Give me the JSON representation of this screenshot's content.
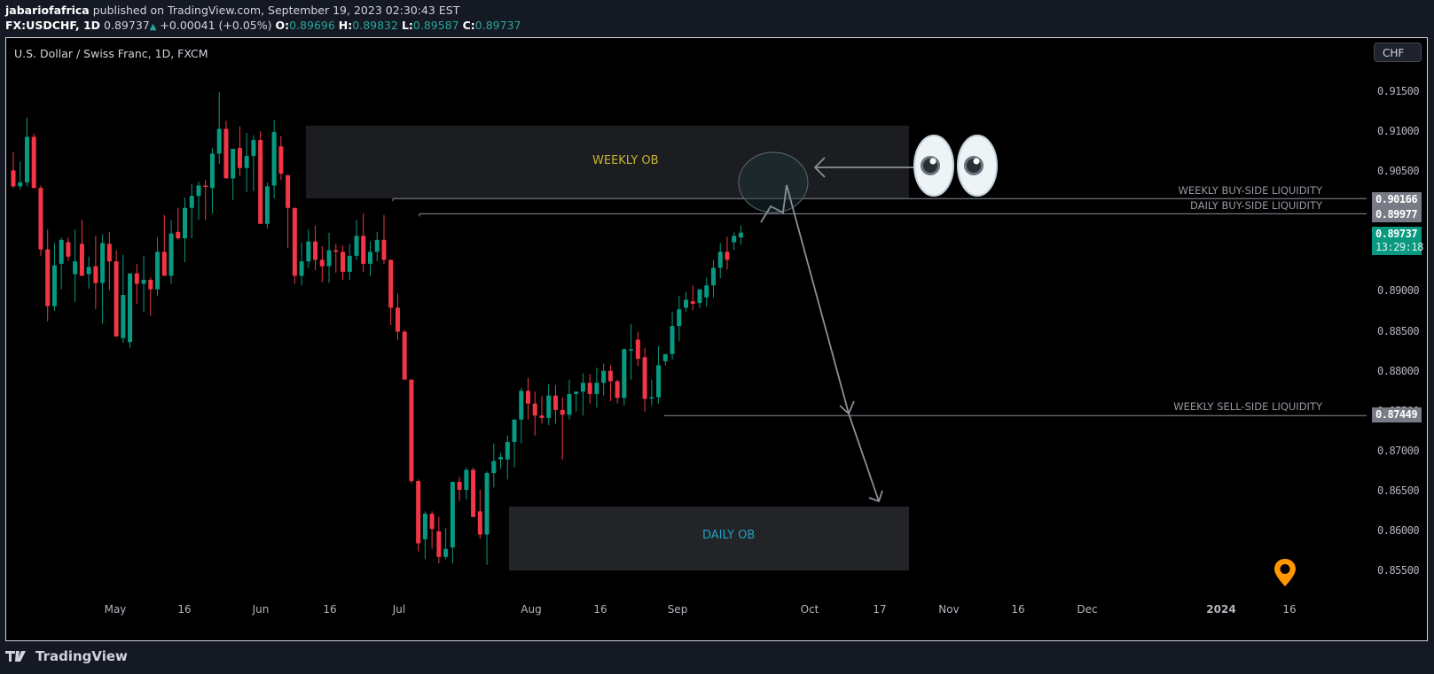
{
  "header": {
    "author": "jabariofafrica",
    "published": "published on TradingView.com, September 19, 2023 02:30:43 EST",
    "symbol": "FX:USDCHF, 1D",
    "last": "0.89737",
    "change": "+0.00041 (+0.05%)",
    "o_label": "O:",
    "o": "0.89696",
    "h_label": "H:",
    "h": "0.89832",
    "l_label": "L:",
    "l": "0.89587",
    "c_label": "C:",
    "c": "0.89737"
  },
  "chart": {
    "title": "U.S. Dollar / Swiss Franc, 1D, FXCM",
    "currency": "CHF",
    "price_labels": {
      "weekly_bsl": "0.90166",
      "daily_bsl": "0.89977",
      "last": "0.89737",
      "countdown": "13:29:18",
      "weekly_ssl": "0.87449"
    },
    "annotations": {
      "weekly_ob": "WEEKLY OB",
      "daily_ob": "DAILY OB",
      "weekly_bsl": "WEEKLY BUY-SIDE LIQUIDITY",
      "daily_bsl": "DAILY BUY-SIDE LIQUIDITY",
      "weekly_ssl": "WEEKLY SELL-SIDE LIQUIDITY"
    },
    "eyes_icon": "eyes-emoji",
    "marker_icon": "location-pin-icon"
  },
  "footer": {
    "brand": "TradingView"
  },
  "colors": {
    "up": "#089981",
    "down": "#f23645",
    "weekly_ob_text": "#c9b432",
    "daily_ob_text": "#1fa2c0",
    "line": "#8c8f99",
    "last_bg": "#089981",
    "label_bg": "#787b86",
    "pin": "#ff9800"
  },
  "chart_data": {
    "type": "candlestick",
    "title": "U.S. Dollar / Swiss Franc, 1D, FXCM",
    "symbol": "FX:USDCHF",
    "interval": "1D",
    "y_ticks": [
      "0.91500",
      "0.91000",
      "0.90500",
      "0.90000",
      "0.89500",
      "0.89000",
      "0.88500",
      "0.88000",
      "0.87500",
      "0.87000",
      "0.86500",
      "0.86000",
      "0.85500"
    ],
    "ylim": [
      0.8525,
      0.9175
    ],
    "x_ticks": [
      "May",
      "16",
      "Jun",
      "16",
      "Jul",
      "Aug",
      "16",
      "Sep",
      "Oct",
      "17",
      "Nov",
      "16",
      "Dec",
      "2024",
      "16"
    ],
    "levels": [
      {
        "name": "WEEKLY BUY-SIDE LIQUIDITY",
        "price": 0.90166
      },
      {
        "name": "DAILY BUY-SIDE LIQUIDITY",
        "price": 0.89977
      },
      {
        "name": "WEEKLY SELL-SIDE LIQUIDITY",
        "price": 0.87449
      }
    ],
    "zones": [
      {
        "name": "WEEKLY OB",
        "top": 0.9108,
        "bottom": 0.9017
      },
      {
        "name": "DAILY OB",
        "top": 0.8631,
        "bottom": 0.8551
      }
    ],
    "last_close": 0.89737,
    "candles": [
      {
        "o": 0.9052,
        "h": 0.9075,
        "l": 0.903,
        "c": 0.9032
      },
      {
        "o": 0.9032,
        "h": 0.9063,
        "l": 0.9028,
        "c": 0.9037
      },
      {
        "o": 0.9037,
        "h": 0.9118,
        "l": 0.9032,
        "c": 0.9094
      },
      {
        "o": 0.9094,
        "h": 0.9098,
        "l": 0.9029,
        "c": 0.903
      },
      {
        "o": 0.903,
        "h": 0.9033,
        "l": 0.8945,
        "c": 0.8953
      },
      {
        "o": 0.8953,
        "h": 0.8978,
        "l": 0.8863,
        "c": 0.8882
      },
      {
        "o": 0.8882,
        "h": 0.8961,
        "l": 0.8876,
        "c": 0.8933
      },
      {
        "o": 0.8935,
        "h": 0.8968,
        "l": 0.8903,
        "c": 0.8965
      },
      {
        "o": 0.8962,
        "h": 0.8968,
        "l": 0.8939,
        "c": 0.8944
      },
      {
        "o": 0.8922,
        "h": 0.8978,
        "l": 0.8887,
        "c": 0.8938
      },
      {
        "o": 0.896,
        "h": 0.899,
        "l": 0.8933,
        "c": 0.892
      },
      {
        "o": 0.8922,
        "h": 0.8944,
        "l": 0.8904,
        "c": 0.8931
      },
      {
        "o": 0.8932,
        "h": 0.897,
        "l": 0.8878,
        "c": 0.8911
      },
      {
        "o": 0.8911,
        "h": 0.8972,
        "l": 0.886,
        "c": 0.8961
      },
      {
        "o": 0.896,
        "h": 0.8975,
        "l": 0.8902,
        "c": 0.8938
      },
      {
        "o": 0.8938,
        "h": 0.8952,
        "l": 0.887,
        "c": 0.8844
      },
      {
        "o": 0.8842,
        "h": 0.8946,
        "l": 0.8836,
        "c": 0.8896
      },
      {
        "o": 0.8837,
        "h": 0.8903,
        "l": 0.883,
        "c": 0.8923
      },
      {
        "o": 0.8923,
        "h": 0.8935,
        "l": 0.8885,
        "c": 0.891
      },
      {
        "o": 0.891,
        "h": 0.8945,
        "l": 0.8875,
        "c": 0.8915
      },
      {
        "o": 0.8915,
        "h": 0.8918,
        "l": 0.887,
        "c": 0.8903
      },
      {
        "o": 0.8903,
        "h": 0.8968,
        "l": 0.8895,
        "c": 0.895
      },
      {
        "o": 0.895,
        "h": 0.8996,
        "l": 0.892,
        "c": 0.892
      },
      {
        "o": 0.892,
        "h": 0.899,
        "l": 0.891,
        "c": 0.8973
      },
      {
        "o": 0.8975,
        "h": 0.9005,
        "l": 0.8965,
        "c": 0.8967
      },
      {
        "o": 0.8967,
        "h": 0.9018,
        "l": 0.8937,
        "c": 0.9005
      },
      {
        "o": 0.9005,
        "h": 0.9035,
        "l": 0.8967,
        "c": 0.902
      },
      {
        "o": 0.902,
        "h": 0.9038,
        "l": 0.899,
        "c": 0.9033
      },
      {
        "o": 0.9033,
        "h": 0.904,
        "l": 0.899,
        "c": 0.9032
      },
      {
        "o": 0.903,
        "h": 0.908,
        "l": 0.8998,
        "c": 0.9073
      },
      {
        "o": 0.9073,
        "h": 0.915,
        "l": 0.906,
        "c": 0.9104
      },
      {
        "o": 0.9104,
        "h": 0.9114,
        "l": 0.9042,
        "c": 0.9042
      },
      {
        "o": 0.9042,
        "h": 0.9077,
        "l": 0.9015,
        "c": 0.9079
      },
      {
        "o": 0.908,
        "h": 0.9107,
        "l": 0.9045,
        "c": 0.9055
      },
      {
        "o": 0.9055,
        "h": 0.9099,
        "l": 0.9025,
        "c": 0.907
      },
      {
        "o": 0.907,
        "h": 0.9096,
        "l": 0.9026,
        "c": 0.909
      },
      {
        "o": 0.909,
        "h": 0.9101,
        "l": 0.8985,
        "c": 0.8985
      },
      {
        "o": 0.8985,
        "h": 0.9037,
        "l": 0.8979,
        "c": 0.9032
      },
      {
        "o": 0.9033,
        "h": 0.9115,
        "l": 0.9017,
        "c": 0.91
      },
      {
        "o": 0.9082,
        "h": 0.9095,
        "l": 0.904,
        "c": 0.9048
      },
      {
        "o": 0.9046,
        "h": 0.9043,
        "l": 0.8955,
        "c": 0.9005
      },
      {
        "o": 0.9005,
        "h": 0.9,
        "l": 0.891,
        "c": 0.892
      },
      {
        "o": 0.892,
        "h": 0.8962,
        "l": 0.8908,
        "c": 0.8938
      },
      {
        "o": 0.8938,
        "h": 0.8978,
        "l": 0.893,
        "c": 0.8963
      },
      {
        "o": 0.8963,
        "h": 0.8983,
        "l": 0.8927,
        "c": 0.894
      },
      {
        "o": 0.894,
        "h": 0.8957,
        "l": 0.8912,
        "c": 0.8932
      },
      {
        "o": 0.8932,
        "h": 0.8974,
        "l": 0.8911,
        "c": 0.8952
      },
      {
        "o": 0.8952,
        "h": 0.896,
        "l": 0.8924,
        "c": 0.895
      },
      {
        "o": 0.895,
        "h": 0.8958,
        "l": 0.8915,
        "c": 0.8925
      },
      {
        "o": 0.8925,
        "h": 0.896,
        "l": 0.8915,
        "c": 0.8945
      },
      {
        "o": 0.8945,
        "h": 0.899,
        "l": 0.894,
        "c": 0.897
      },
      {
        "o": 0.897,
        "h": 0.8998,
        "l": 0.8925,
        "c": 0.8935
      },
      {
        "o": 0.8935,
        "h": 0.8963,
        "l": 0.892,
        "c": 0.895
      },
      {
        "o": 0.895,
        "h": 0.8975,
        "l": 0.8938,
        "c": 0.8965
      },
      {
        "o": 0.8965,
        "h": 0.8996,
        "l": 0.8935,
        "c": 0.894
      },
      {
        "o": 0.894,
        "h": 0.893,
        "l": 0.8858,
        "c": 0.888
      },
      {
        "o": 0.888,
        "h": 0.8898,
        "l": 0.884,
        "c": 0.885
      },
      {
        "o": 0.885,
        "h": 0.8852,
        "l": 0.879,
        "c": 0.879
      },
      {
        "o": 0.879,
        "h": 0.879,
        "l": 0.866,
        "c": 0.8663
      },
      {
        "o": 0.8663,
        "h": 0.8665,
        "l": 0.8575,
        "c": 0.8585
      },
      {
        "o": 0.859,
        "h": 0.8625,
        "l": 0.8565,
        "c": 0.8622
      },
      {
        "o": 0.8622,
        "h": 0.8625,
        "l": 0.8578,
        "c": 0.8603
      },
      {
        "o": 0.86,
        "h": 0.8618,
        "l": 0.856,
        "c": 0.8568
      },
      {
        "o": 0.8568,
        "h": 0.8604,
        "l": 0.8565,
        "c": 0.8578
      },
      {
        "o": 0.858,
        "h": 0.8662,
        "l": 0.856,
        "c": 0.8662
      },
      {
        "o": 0.8662,
        "h": 0.8668,
        "l": 0.8638,
        "c": 0.8652
      },
      {
        "o": 0.8652,
        "h": 0.868,
        "l": 0.864,
        "c": 0.8677
      },
      {
        "o": 0.8677,
        "h": 0.868,
        "l": 0.8618,
        "c": 0.8618
      },
      {
        "o": 0.8625,
        "h": 0.8652,
        "l": 0.8591,
        "c": 0.8596
      },
      {
        "o": 0.8596,
        "h": 0.8675,
        "l": 0.8558,
        "c": 0.8673
      },
      {
        "o": 0.8673,
        "h": 0.871,
        "l": 0.8655,
        "c": 0.8688
      },
      {
        "o": 0.869,
        "h": 0.8698,
        "l": 0.8678,
        "c": 0.8693
      },
      {
        "o": 0.869,
        "h": 0.872,
        "l": 0.8665,
        "c": 0.8712
      },
      {
        "o": 0.8712,
        "h": 0.874,
        "l": 0.868,
        "c": 0.874
      },
      {
        "o": 0.874,
        "h": 0.878,
        "l": 0.871,
        "c": 0.8776
      },
      {
        "o": 0.8776,
        "h": 0.8792,
        "l": 0.874,
        "c": 0.876
      },
      {
        "o": 0.876,
        "h": 0.8775,
        "l": 0.872,
        "c": 0.8745
      },
      {
        "o": 0.8745,
        "h": 0.877,
        "l": 0.8735,
        "c": 0.8742
      },
      {
        "o": 0.8742,
        "h": 0.8784,
        "l": 0.8733,
        "c": 0.877
      },
      {
        "o": 0.877,
        "h": 0.8783,
        "l": 0.8735,
        "c": 0.8752
      },
      {
        "o": 0.8752,
        "h": 0.8768,
        "l": 0.869,
        "c": 0.8746
      },
      {
        "o": 0.8746,
        "h": 0.879,
        "l": 0.874,
        "c": 0.8772
      },
      {
        "o": 0.8772,
        "h": 0.8775,
        "l": 0.875,
        "c": 0.8775
      },
      {
        "o": 0.8775,
        "h": 0.8798,
        "l": 0.8745,
        "c": 0.8786
      },
      {
        "o": 0.8786,
        "h": 0.8797,
        "l": 0.876,
        "c": 0.8772
      },
      {
        "o": 0.8772,
        "h": 0.8805,
        "l": 0.8755,
        "c": 0.8786
      },
      {
        "o": 0.8786,
        "h": 0.881,
        "l": 0.877,
        "c": 0.8801
      },
      {
        "o": 0.8801,
        "h": 0.8808,
        "l": 0.8763,
        "c": 0.8788
      },
      {
        "o": 0.8788,
        "h": 0.879,
        "l": 0.876,
        "c": 0.8767
      },
      {
        "o": 0.8767,
        "h": 0.8829,
        "l": 0.8757,
        "c": 0.8828
      },
      {
        "o": 0.8828,
        "h": 0.886,
        "l": 0.879,
        "c": 0.8828
      },
      {
        "o": 0.884,
        "h": 0.885,
        "l": 0.8807,
        "c": 0.8816
      },
      {
        "o": 0.8818,
        "h": 0.883,
        "l": 0.875,
        "c": 0.8766
      },
      {
        "o": 0.8767,
        "h": 0.879,
        "l": 0.8758,
        "c": 0.8768
      },
      {
        "o": 0.8768,
        "h": 0.8832,
        "l": 0.876,
        "c": 0.8808
      },
      {
        "o": 0.8813,
        "h": 0.8822,
        "l": 0.8808,
        "c": 0.8822
      },
      {
        "o": 0.8822,
        "h": 0.8875,
        "l": 0.8815,
        "c": 0.8857
      },
      {
        "o": 0.8857,
        "h": 0.8895,
        "l": 0.8838,
        "c": 0.8878
      },
      {
        "o": 0.888,
        "h": 0.89,
        "l": 0.8875,
        "c": 0.889
      },
      {
        "o": 0.8888,
        "h": 0.8908,
        "l": 0.8877,
        "c": 0.8885
      },
      {
        "o": 0.8886,
        "h": 0.89,
        "l": 0.888,
        "c": 0.8903
      },
      {
        "o": 0.8893,
        "h": 0.8918,
        "l": 0.8881,
        "c": 0.8908
      },
      {
        "o": 0.8908,
        "h": 0.894,
        "l": 0.8893,
        "c": 0.893
      },
      {
        "o": 0.893,
        "h": 0.8961,
        "l": 0.8917,
        "c": 0.895
      },
      {
        "o": 0.895,
        "h": 0.8969,
        "l": 0.8928,
        "c": 0.894
      },
      {
        "o": 0.8962,
        "h": 0.8974,
        "l": 0.8952,
        "c": 0.897
      },
      {
        "o": 0.8968,
        "h": 0.8983,
        "l": 0.8959,
        "c": 0.8974
      }
    ]
  }
}
